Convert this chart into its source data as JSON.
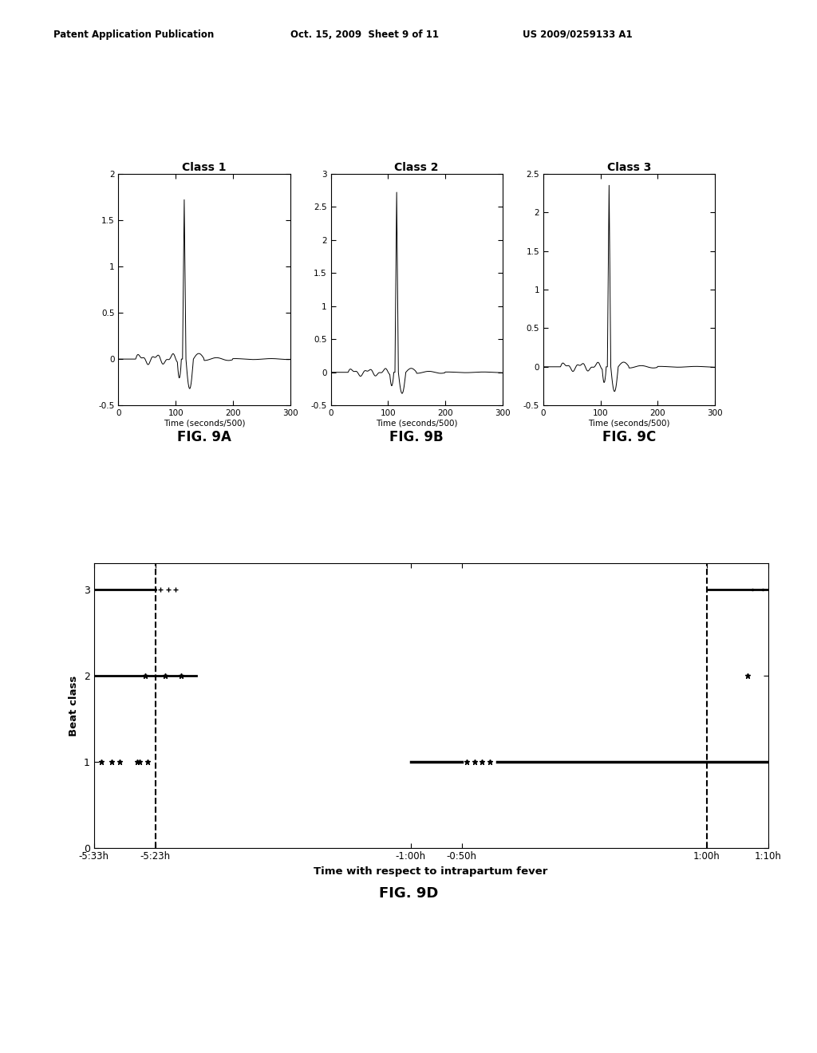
{
  "bg_color": "#ffffff",
  "header_left": "Patent Application Publication",
  "header_mid": "Oct. 15, 2009  Sheet 9 of 11",
  "header_right": "US 2009/0259133 A1",
  "fig9a_title": "Class 1",
  "fig9b_title": "Class 2",
  "fig9c_title": "Class 3",
  "fig9a_ylim": [
    -0.5,
    2.0
  ],
  "fig9b_ylim": [
    -0.5,
    3.0
  ],
  "fig9c_ylim": [
    -0.5,
    2.5
  ],
  "fig9a_yticks": [
    0,
    0.5,
    1.0,
    1.5,
    2.0
  ],
  "fig9b_yticks": [
    0,
    0.5,
    1.0,
    1.5,
    2.0,
    2.5,
    3.0
  ],
  "fig9c_yticks": [
    0,
    0.5,
    1.0,
    1.5,
    2.0,
    2.5
  ],
  "xlim": [
    0,
    300
  ],
  "xticks": [
    0,
    100,
    200,
    300
  ],
  "xlabel": "Time (seconds/500)",
  "fig9a_label": "FIG. 9A",
  "fig9b_label": "FIG. 9B",
  "fig9c_label": "FIG. 9C",
  "fig9d_label": "FIG. 9D",
  "fig9d_xlabel": "Time with respect to intrapartum fever",
  "fig9d_ylabel": "Beat class",
  "fig9d_xtick_labels": [
    "-5:33h",
    "-5:23h",
    "-1:00h",
    "-0:50h",
    "1:00h",
    "1:10h"
  ],
  "fig9d_ytick_labels": [
    "0",
    "1",
    "2",
    "3"
  ],
  "fig9d_ylim": [
    0,
    3.3
  ],
  "line_color": "#000000"
}
